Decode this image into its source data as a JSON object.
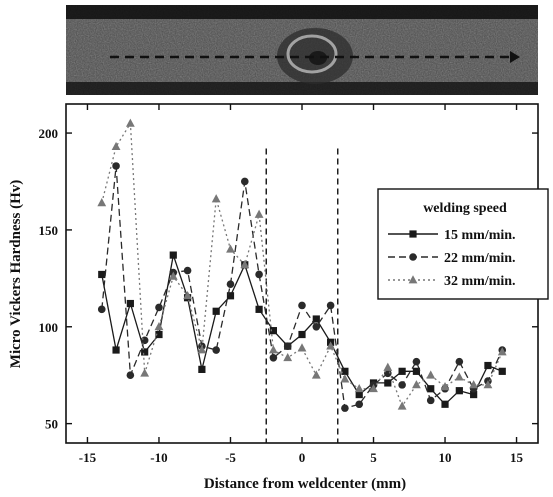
{
  "chart_data": {
    "type": "line",
    "xlabel": "Distance from weldcenter (mm)",
    "ylabel": "Micro Vickers Hardness (Hv)",
    "xlim": [
      -16.5,
      16.5
    ],
    "ylim": [
      40,
      215
    ],
    "xticks": [
      -15,
      -10,
      -5,
      0,
      5,
      10,
      15
    ],
    "yticks": [
      50,
      100,
      150,
      200
    ],
    "grid": false,
    "legend": {
      "title": "welding speed",
      "placement": "right-middle"
    },
    "vlines": [
      -2.5,
      2.5
    ],
    "series": [
      {
        "name": "15 mm/min.",
        "marker": "square",
        "dash": "solid",
        "color": "#1a1a1a",
        "x": [
          -14,
          -13,
          -12,
          -11,
          -10,
          -9,
          -8,
          -7,
          -6,
          -5,
          -4,
          -3,
          -2,
          -1,
          0,
          1,
          2,
          3,
          4,
          5,
          6,
          7,
          8,
          9,
          10,
          11,
          12,
          13,
          14
        ],
        "y": [
          127,
          88,
          112,
          87,
          96,
          137,
          115,
          78,
          108,
          116,
          132,
          109,
          98,
          90,
          96,
          104,
          92,
          77,
          65,
          71,
          71,
          77,
          77,
          68,
          60,
          67,
          65,
          80,
          77
        ]
      },
      {
        "name": "22 mm/min.",
        "marker": "circle",
        "dash": "dash",
        "color": "#2a2a2a",
        "x": [
          -14,
          -13,
          -12,
          -11,
          -10,
          -9,
          -8,
          -7,
          -6,
          -5,
          -4,
          -3,
          -2,
          -1,
          0,
          1,
          2,
          3,
          4,
          5,
          6,
          7,
          8,
          9,
          10,
          11,
          12,
          13,
          14
        ],
        "y": [
          109,
          183,
          75,
          93,
          110,
          128,
          129,
          90,
          88,
          122,
          175,
          127,
          84,
          90,
          111,
          100,
          111,
          58,
          60,
          70,
          76,
          70,
          82,
          62,
          68,
          82,
          68,
          72,
          88
        ]
      },
      {
        "name": "32 mm/min.",
        "marker": "triangle",
        "dash": "dot",
        "color": "#777777",
        "x": [
          -14,
          -13,
          -12,
          -11,
          -10,
          -9,
          -8,
          -7,
          -6,
          -5,
          -4,
          -3,
          -2,
          -1,
          0,
          1,
          2,
          3,
          4,
          5,
          6,
          7,
          8,
          9,
          10,
          11,
          12,
          13,
          14
        ],
        "y": [
          164,
          193,
          205,
          76,
          100,
          126,
          116,
          88,
          166,
          140,
          132,
          158,
          88,
          84,
          89,
          75,
          90,
          73,
          68,
          68,
          79,
          59,
          70,
          75,
          69,
          74,
          70,
          70,
          87
        ]
      }
    ]
  }
}
